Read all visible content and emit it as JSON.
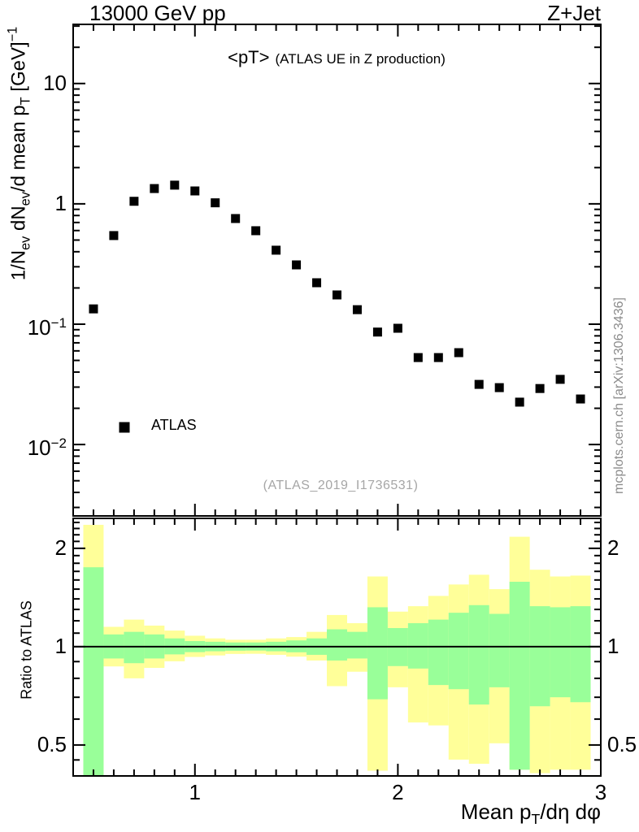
{
  "header": {
    "left": "13000 GeV pp",
    "right": "Z+Jet"
  },
  "title": {
    "main": "<pT>",
    "sub": "(ATLAS UE in Z production)"
  },
  "watermark": "(ATLAS_2019_I1736531)",
  "credit": "mcplots.cern.ch [arXiv:1306.3436]",
  "legend": {
    "label": "ATLAS",
    "marker": "filled-square",
    "marker_color": "#000000"
  },
  "colors": {
    "axis": "#000000",
    "marker": "#000000",
    "band_outer": "#ffff99",
    "band_inner": "#99ff99",
    "watermark_gray": "#a6a6a6",
    "credit_gray": "#8c8c8c"
  },
  "axes": {
    "x": {
      "label_segments": [
        {
          "t": "Mean p"
        },
        {
          "t": "T",
          "s": "sub"
        },
        {
          "t": "/dη dφ"
        }
      ],
      "tick_labels": [
        {
          "v": 1,
          "t": "1"
        },
        {
          "v": 2,
          "t": "2"
        },
        {
          "v": 3,
          "t": "3"
        }
      ]
    },
    "y_top": {
      "label_segments": [
        {
          "t": "1/N"
        },
        {
          "t": "ev",
          "s": "sub"
        },
        {
          "t": " dN"
        },
        {
          "t": "ev",
          "s": "sub"
        },
        {
          "t": "/d mean p"
        },
        {
          "t": "T",
          "s": "sub"
        },
        {
          "t": " [GeV]"
        },
        {
          "t": "−1",
          "s": "sup"
        }
      ],
      "tick_labels": [
        {
          "v": 10,
          "base": "10",
          "exp": ""
        },
        {
          "v": 1,
          "base": "1",
          "exp": ""
        },
        {
          "v": 0.1,
          "base": "10",
          "exp": "−1"
        },
        {
          "v": 0.01,
          "base": "10",
          "exp": "−2"
        }
      ]
    },
    "y_ratio": {
      "label": "Ratio to ATLAS",
      "tick_labels": [
        {
          "v": 2,
          "t": "2"
        },
        {
          "v": 1,
          "t": "1"
        },
        {
          "v": 0.5,
          "t": "0.5"
        }
      ],
      "minor_ticks": [
        0.45,
        0.6,
        0.7,
        0.8,
        0.9,
        1.1,
        1.2,
        1.3,
        1.4,
        1.5,
        1.6,
        1.7,
        1.8,
        1.9,
        2.1,
        2.2,
        2.3,
        2.4
      ]
    }
  },
  "chart_data": {
    "type": "scatter",
    "title": "<pT> (ATLAS UE in Z production)",
    "xlabel": "Mean pT/dη dφ",
    "ylabel": "1/Nev dNev/d mean pT [GeV]−1",
    "xlim": [
      0.4,
      3.0
    ],
    "x_major_ticks": [
      1,
      2,
      3
    ],
    "x_minor_step": 0.1,
    "top_panel": {
      "ylog": true,
      "ylim": [
        0.00255,
        31
      ],
      "y_major_ticks": [
        0.01,
        0.1,
        1,
        10
      ],
      "series": [
        {
          "name": "ATLAS",
          "marker": "filled-square",
          "color": "#000000",
          "x": [
            0.5,
            0.6,
            0.7,
            0.8,
            0.9,
            1.0,
            1.1,
            1.2,
            1.3,
            1.4,
            1.5,
            1.6,
            1.7,
            1.8,
            1.9,
            2.0,
            2.1,
            2.2,
            2.3,
            2.4,
            2.5,
            2.6,
            2.7,
            2.8,
            2.9
          ],
          "y": [
            0.134,
            0.545,
            1.05,
            1.34,
            1.43,
            1.28,
            1.02,
            0.755,
            0.598,
            0.412,
            0.311,
            0.221,
            0.175,
            0.132,
            0.086,
            0.0925,
            0.0528,
            0.0528,
            0.058,
            0.0316,
            0.0297,
            0.0225,
            0.0292,
            0.0348,
            0.0239
          ]
        }
      ]
    },
    "ratio_panel": {
      "label": "Ratio to ATLAS",
      "ylog": true,
      "ylim": [
        0.402,
        2.47
      ],
      "major_ticks": [
        2,
        1,
        0.5
      ],
      "baseline": 1,
      "bin_width": 0.1,
      "bands": {
        "outer_color": "#ffff99",
        "inner_color": "#99ff99",
        "x": [
          0.5,
          0.6,
          0.7,
          0.8,
          0.9,
          1.0,
          1.1,
          1.2,
          1.3,
          1.4,
          1.5,
          1.6,
          1.7,
          1.8,
          1.9,
          2.0,
          2.1,
          2.2,
          2.3,
          2.4,
          2.5,
          2.6,
          2.7,
          2.8,
          2.9
        ],
        "outer_hi": [
          2.36,
          1.15,
          1.21,
          1.16,
          1.12,
          1.08,
          1.06,
          1.05,
          1.05,
          1.06,
          1.07,
          1.11,
          1.25,
          1.18,
          1.64,
          1.28,
          1.33,
          1.43,
          1.55,
          1.66,
          1.5,
          2.17,
          1.72,
          1.64,
          1.65
        ],
        "inner_hi": [
          1.75,
          1.09,
          1.11,
          1.09,
          1.06,
          1.04,
          1.035,
          1.03,
          1.03,
          1.035,
          1.045,
          1.06,
          1.13,
          1.11,
          1.32,
          1.14,
          1.18,
          1.21,
          1.27,
          1.34,
          1.26,
          1.58,
          1.33,
          1.32,
          1.33
        ],
        "inner_lo": [
          0.39,
          0.92,
          0.89,
          0.92,
          0.947,
          0.962,
          0.968,
          0.972,
          0.973,
          0.968,
          0.961,
          0.944,
          0.907,
          0.92,
          0.69,
          0.872,
          0.857,
          0.763,
          0.741,
          0.665,
          0.751,
          0.42,
          0.657,
          0.7,
          0.676
        ],
        "outer_lo": [
          0.39,
          0.87,
          0.8,
          0.861,
          0.902,
          0.93,
          0.94,
          0.95,
          0.951,
          0.944,
          0.932,
          0.907,
          0.757,
          0.838,
          0.417,
          0.751,
          0.586,
          0.574,
          0.451,
          0.438,
          0.506,
          0.42,
          0.41,
          0.42,
          0.42
        ]
      }
    }
  }
}
